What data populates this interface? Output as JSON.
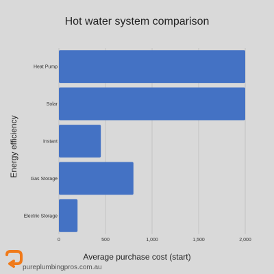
{
  "chart_data": {
    "type": "bar",
    "orientation": "horizontal",
    "title": "Hot water system comparison",
    "xlabel": "Average purchase cost (start)",
    "ylabel": "Energy efficiency",
    "categories": [
      "Heat Pump",
      "Solar",
      "Instant",
      "Gas Storage",
      "Electric Storage"
    ],
    "values": [
      2000,
      2000,
      450,
      800,
      200
    ],
    "xlim": [
      0,
      2000
    ],
    "xticks": [
      {
        "value": 0,
        "label": "0"
      },
      {
        "value": 500,
        "label": "500"
      },
      {
        "value": 1000,
        "label": "1,000"
      },
      {
        "value": 1500,
        "label": "1,500"
      },
      {
        "value": 2000,
        "label": "2,000"
      }
    ],
    "grid": true,
    "bar_color": "#4472c4"
  },
  "branding": {
    "site": "pureplumbingpros.com.au",
    "logo_color": "#f07a1a"
  }
}
